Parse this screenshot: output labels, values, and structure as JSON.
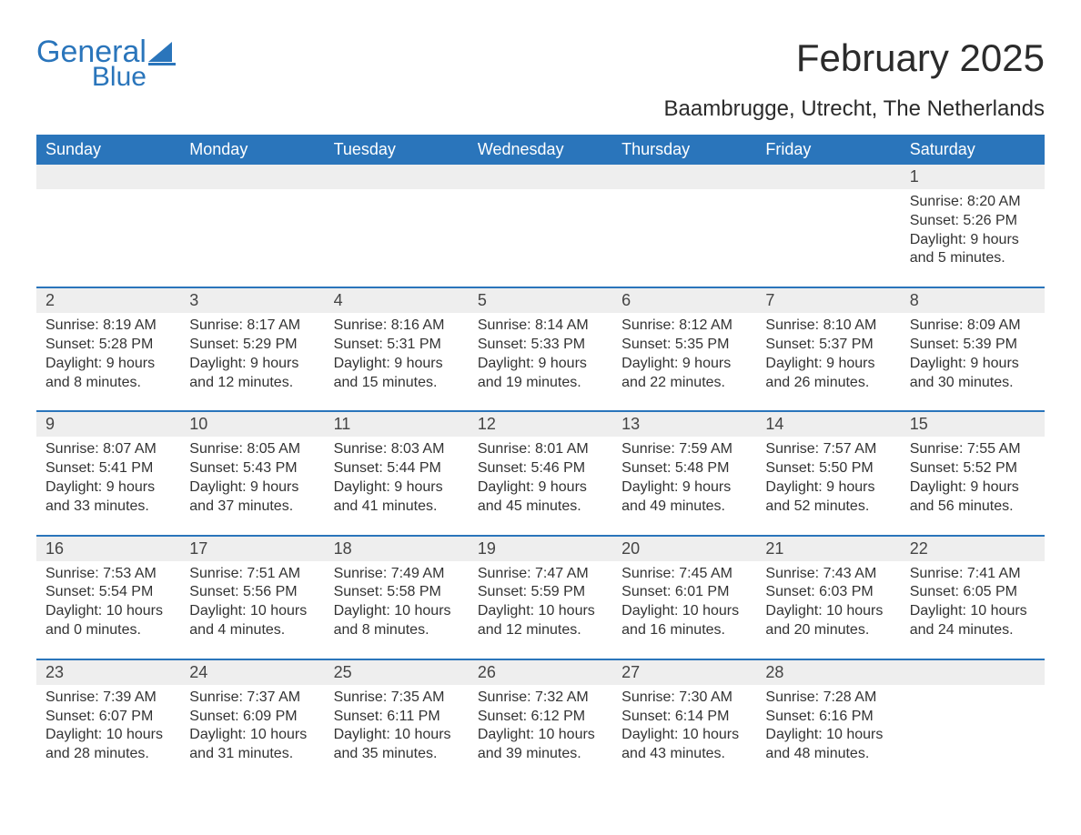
{
  "brand": {
    "word1": "General",
    "word2": "Blue",
    "logo_color": "#2a75bb"
  },
  "title": "February 2025",
  "location": "Baambrugge, Utrecht, The Netherlands",
  "colors": {
    "header_bg": "#2a75bb",
    "header_text": "#ffffff",
    "daynum_bg": "#eeeeee",
    "body_text": "#333333",
    "page_bg": "#ffffff",
    "topbar": "#2a75bb"
  },
  "fonts": {
    "title_size_pt": 32,
    "subtitle_size_pt": 18,
    "dow_size_pt": 14,
    "daynum_size_pt": 14,
    "body_size_pt": 12
  },
  "days_of_week": [
    "Sunday",
    "Monday",
    "Tuesday",
    "Wednesday",
    "Thursday",
    "Friday",
    "Saturday"
  ],
  "weeks": [
    {
      "cells": [
        {
          "num": "",
          "sunrise": "",
          "sunset": "",
          "daylight": ""
        },
        {
          "num": "",
          "sunrise": "",
          "sunset": "",
          "daylight": ""
        },
        {
          "num": "",
          "sunrise": "",
          "sunset": "",
          "daylight": ""
        },
        {
          "num": "",
          "sunrise": "",
          "sunset": "",
          "daylight": ""
        },
        {
          "num": "",
          "sunrise": "",
          "sunset": "",
          "daylight": ""
        },
        {
          "num": "",
          "sunrise": "",
          "sunset": "",
          "daylight": ""
        },
        {
          "num": "1",
          "sunrise": "Sunrise: 8:20 AM",
          "sunset": "Sunset: 5:26 PM",
          "daylight": "Daylight: 9 hours and 5 minutes."
        }
      ]
    },
    {
      "cells": [
        {
          "num": "2",
          "sunrise": "Sunrise: 8:19 AM",
          "sunset": "Sunset: 5:28 PM",
          "daylight": "Daylight: 9 hours and 8 minutes."
        },
        {
          "num": "3",
          "sunrise": "Sunrise: 8:17 AM",
          "sunset": "Sunset: 5:29 PM",
          "daylight": "Daylight: 9 hours and 12 minutes."
        },
        {
          "num": "4",
          "sunrise": "Sunrise: 8:16 AM",
          "sunset": "Sunset: 5:31 PM",
          "daylight": "Daylight: 9 hours and 15 minutes."
        },
        {
          "num": "5",
          "sunrise": "Sunrise: 8:14 AM",
          "sunset": "Sunset: 5:33 PM",
          "daylight": "Daylight: 9 hours and 19 minutes."
        },
        {
          "num": "6",
          "sunrise": "Sunrise: 8:12 AM",
          "sunset": "Sunset: 5:35 PM",
          "daylight": "Daylight: 9 hours and 22 minutes."
        },
        {
          "num": "7",
          "sunrise": "Sunrise: 8:10 AM",
          "sunset": "Sunset: 5:37 PM",
          "daylight": "Daylight: 9 hours and 26 minutes."
        },
        {
          "num": "8",
          "sunrise": "Sunrise: 8:09 AM",
          "sunset": "Sunset: 5:39 PM",
          "daylight": "Daylight: 9 hours and 30 minutes."
        }
      ]
    },
    {
      "cells": [
        {
          "num": "9",
          "sunrise": "Sunrise: 8:07 AM",
          "sunset": "Sunset: 5:41 PM",
          "daylight": "Daylight: 9 hours and 33 minutes."
        },
        {
          "num": "10",
          "sunrise": "Sunrise: 8:05 AM",
          "sunset": "Sunset: 5:43 PM",
          "daylight": "Daylight: 9 hours and 37 minutes."
        },
        {
          "num": "11",
          "sunrise": "Sunrise: 8:03 AM",
          "sunset": "Sunset: 5:44 PM",
          "daylight": "Daylight: 9 hours and 41 minutes."
        },
        {
          "num": "12",
          "sunrise": "Sunrise: 8:01 AM",
          "sunset": "Sunset: 5:46 PM",
          "daylight": "Daylight: 9 hours and 45 minutes."
        },
        {
          "num": "13",
          "sunrise": "Sunrise: 7:59 AM",
          "sunset": "Sunset: 5:48 PM",
          "daylight": "Daylight: 9 hours and 49 minutes."
        },
        {
          "num": "14",
          "sunrise": "Sunrise: 7:57 AM",
          "sunset": "Sunset: 5:50 PM",
          "daylight": "Daylight: 9 hours and 52 minutes."
        },
        {
          "num": "15",
          "sunrise": "Sunrise: 7:55 AM",
          "sunset": "Sunset: 5:52 PM",
          "daylight": "Daylight: 9 hours and 56 minutes."
        }
      ]
    },
    {
      "cells": [
        {
          "num": "16",
          "sunrise": "Sunrise: 7:53 AM",
          "sunset": "Sunset: 5:54 PM",
          "daylight": "Daylight: 10 hours and 0 minutes."
        },
        {
          "num": "17",
          "sunrise": "Sunrise: 7:51 AM",
          "sunset": "Sunset: 5:56 PM",
          "daylight": "Daylight: 10 hours and 4 minutes."
        },
        {
          "num": "18",
          "sunrise": "Sunrise: 7:49 AM",
          "sunset": "Sunset: 5:58 PM",
          "daylight": "Daylight: 10 hours and 8 minutes."
        },
        {
          "num": "19",
          "sunrise": "Sunrise: 7:47 AM",
          "sunset": "Sunset: 5:59 PM",
          "daylight": "Daylight: 10 hours and 12 minutes."
        },
        {
          "num": "20",
          "sunrise": "Sunrise: 7:45 AM",
          "sunset": "Sunset: 6:01 PM",
          "daylight": "Daylight: 10 hours and 16 minutes."
        },
        {
          "num": "21",
          "sunrise": "Sunrise: 7:43 AM",
          "sunset": "Sunset: 6:03 PM",
          "daylight": "Daylight: 10 hours and 20 minutes."
        },
        {
          "num": "22",
          "sunrise": "Sunrise: 7:41 AM",
          "sunset": "Sunset: 6:05 PM",
          "daylight": "Daylight: 10 hours and 24 minutes."
        }
      ]
    },
    {
      "cells": [
        {
          "num": "23",
          "sunrise": "Sunrise: 7:39 AM",
          "sunset": "Sunset: 6:07 PM",
          "daylight": "Daylight: 10 hours and 28 minutes."
        },
        {
          "num": "24",
          "sunrise": "Sunrise: 7:37 AM",
          "sunset": "Sunset: 6:09 PM",
          "daylight": "Daylight: 10 hours and 31 minutes."
        },
        {
          "num": "25",
          "sunrise": "Sunrise: 7:35 AM",
          "sunset": "Sunset: 6:11 PM",
          "daylight": "Daylight: 10 hours and 35 minutes."
        },
        {
          "num": "26",
          "sunrise": "Sunrise: 7:32 AM",
          "sunset": "Sunset: 6:12 PM",
          "daylight": "Daylight: 10 hours and 39 minutes."
        },
        {
          "num": "27",
          "sunrise": "Sunrise: 7:30 AM",
          "sunset": "Sunset: 6:14 PM",
          "daylight": "Daylight: 10 hours and 43 minutes."
        },
        {
          "num": "28",
          "sunrise": "Sunrise: 7:28 AM",
          "sunset": "Sunset: 6:16 PM",
          "daylight": "Daylight: 10 hours and 48 minutes."
        },
        {
          "num": "",
          "sunrise": "",
          "sunset": "",
          "daylight": ""
        }
      ]
    }
  ]
}
